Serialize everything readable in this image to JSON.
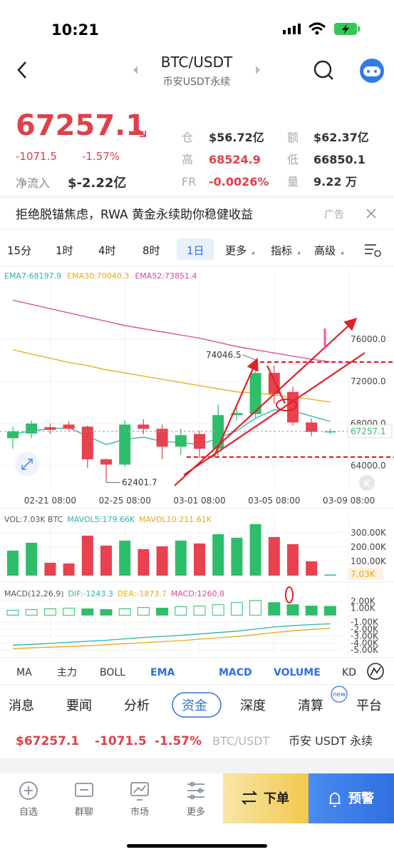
{
  "status_bar": {
    "time": "10:21"
  },
  "header": {
    "title": "BTC/USDT",
    "subtitle": "币安USDT永续"
  },
  "ticker": {
    "price": "67257.1",
    "change": "-1071.5",
    "change_pct": "-1.57%",
    "net_inflow_label": "净流入",
    "net_inflow": "$-2.22亿",
    "stats": [
      {
        "label": "仓",
        "value": "$56.72亿"
      },
      {
        "label": "额",
        "value": "$62.37亿"
      },
      {
        "label": "高",
        "value": "68524.9"
      },
      {
        "label": "低",
        "value": "66850.1"
      },
      {
        "label": "FR",
        "value": "-0.0026%"
      },
      {
        "label": "量",
        "value": "9.22 万"
      }
    ]
  },
  "banner": {
    "text": "拒绝脱锚焦虑，RWA 黄金永续助你稳健收益",
    "tag": "广告"
  },
  "intervals": [
    "15分",
    "1时",
    "4时",
    "8时",
    "1日",
    "更多",
    "指标",
    "高级"
  ],
  "active_interval": 4,
  "chart_data": {
    "type": "candlestick",
    "categories": [
      null,
      null,
      "02-21 08:00",
      null,
      null,
      null,
      "02-25 08:00",
      null,
      null,
      null,
      "03-01 08:00",
      null,
      null,
      null,
      "03-05 08:00",
      null,
      null,
      null,
      "03-09 08:00"
    ],
    "open": [
      66600,
      67050,
      67650,
      67900,
      67700,
      64600,
      64100,
      67900,
      67500,
      65800,
      67000,
      65600,
      68800,
      68900,
      72800,
      71000,
      68100,
      67200,
      null
    ],
    "high": [
      67700,
      68300,
      68000,
      68200,
      67800,
      64700,
      68300,
      68400,
      67900,
      67500,
      67300,
      69800,
      69500,
      74046.5,
      73500,
      71500,
      68500,
      67500,
      null
    ],
    "low": [
      65600,
      66600,
      67000,
      67300,
      63800,
      62401.7,
      63900,
      67000,
      64600,
      65000,
      64700,
      64800,
      68300,
      68500,
      69900,
      67800,
      66800,
      67000,
      null
    ],
    "close": [
      67250,
      68000,
      67400,
      67500,
      64600,
      64100,
      67900,
      67500,
      65800,
      66900,
      65600,
      68800,
      69000,
      72800,
      70800,
      68100,
      67200,
      67257.1,
      null
    ],
    "up_color": "#2ebd6b",
    "down_color": "#e8414f",
    "series": [
      {
        "name": "EMA7:68197.9",
        "color": "#2bb3a8",
        "values": [
          67000,
          67300,
          67500,
          67600,
          66800,
          66000,
          66500,
          66700,
          66300,
          66200,
          66000,
          66600,
          67300,
          68500,
          69300,
          69200,
          68700,
          68197.9,
          null
        ]
      },
      {
        "name": "EMA30:70040.3",
        "color": "#e8a916",
        "values": [
          75000,
          74600,
          74200,
          73800,
          73500,
          73100,
          72800,
          72500,
          72200,
          71900,
          71600,
          71300,
          71000,
          70900,
          70700,
          70500,
          70300,
          70040.3,
          null
        ]
      },
      {
        "name": "EMA52:73851.4",
        "color": "#d9479a",
        "values": [
          79700,
          79300,
          78900,
          78500,
          78100,
          77700,
          77300,
          77000,
          76700,
          76400,
          76100,
          75700,
          75300,
          75000,
          74700,
          74400,
          74100,
          73851.4,
          null
        ]
      }
    ],
    "ylim": [
      61560,
      82780
    ],
    "yticks": [
      {
        "value": 64000,
        "label": "64000.0"
      },
      {
        "value": 68000,
        "label": "68000.0"
      },
      {
        "value": 72000,
        "label": "72000.0"
      },
      {
        "value": 76000,
        "label": "76000.0"
      }
    ],
    "grid": true,
    "volume": {
      "legend": [
        "VOL:7.03K BTC",
        "MAVOL5:179.66K",
        "MAVOL10:211.61K"
      ],
      "legend_colors": [
        "#555555",
        "#2bb3a8",
        "#e8a916"
      ],
      "values": [
        175000,
        230000,
        90000,
        85000,
        280000,
        210000,
        245000,
        185000,
        205000,
        245000,
        225000,
        290000,
        265000,
        360000,
        270000,
        220000,
        100000,
        7030,
        null
      ],
      "current_label": "7.03K",
      "ylim": [
        0,
        355000
      ],
      "yticks": [
        {
          "value": 100000,
          "label": "100.00K"
        },
        {
          "value": 200000,
          "label": "200.00K"
        },
        {
          "value": 300000,
          "label": "300.00K"
        }
      ]
    },
    "macd": {
      "legend": [
        "MACD(12,26,9)",
        "DIF:-1243.3",
        "DEA:-1873.7",
        "MACD:1260.8"
      ],
      "legend_colors": [
        "#555555",
        "#2bb3a8",
        "#e8a916",
        "#d9479a"
      ],
      "values": [
        700,
        800,
        900,
        1000,
        900,
        800,
        900,
        1100,
        1000,
        1200,
        1300,
        1500,
        1800,
        2100,
        1800,
        1500,
        1300,
        1260.8,
        null
      ],
      "dif": [
        -4300,
        -4200,
        -4050,
        -3900,
        -3750,
        -3600,
        -3400,
        -3200,
        -3050,
        -2900,
        -2700,
        -2500,
        -2300,
        -2000,
        -1700,
        -1500,
        -1350,
        -1243.3,
        null
      ],
      "dea": [
        -4800,
        -4700,
        -4600,
        -4500,
        -4400,
        -4250,
        -4100,
        -3950,
        -3800,
        -3650,
        -3450,
        -3250,
        -3050,
        -2800,
        -2500,
        -2250,
        -2050,
        -1873.7,
        null
      ],
      "ylim": [
        -5600,
        2800
      ],
      "yticks": [
        {
          "value": 2000,
          "label": "2.00K"
        },
        {
          "value": 1000,
          "label": "1.00K"
        },
        {
          "value": -1000,
          "label": "-1.00K"
        },
        {
          "value": -2000,
          "label": "-2.00K"
        },
        {
          "value": -3000,
          "label": "-3.00K"
        },
        {
          "value": -4000,
          "label": "-4.00K"
        },
        {
          "value": -5000,
          "label": "-5.00K"
        }
      ]
    }
  },
  "indicator_tabs": [
    "MA",
    "主力",
    "BOLL",
    "EMA",
    "MACD",
    "VOLUME",
    "KD"
  ],
  "section_tabs": [
    "消息",
    "要闻",
    "分析",
    "资金",
    "深度",
    "清算",
    "平台"
  ],
  "section_badge": "new",
  "footer_ticker": {
    "price": "$67257.1",
    "change": "-1071.5",
    "change_pct": "-1.57%",
    "symbol": "BTC/USDT",
    "market": "币安 USDT 永续"
  },
  "bottom_nav": [
    "自选",
    "群聊",
    "市场",
    "更多"
  ],
  "buttons": {
    "order": "下单",
    "alert": "预警"
  }
}
